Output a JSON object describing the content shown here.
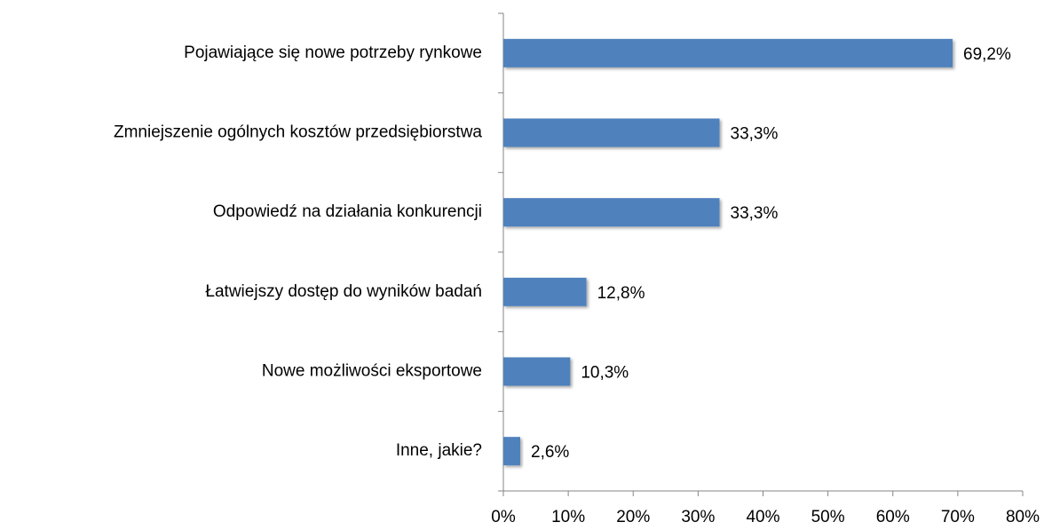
{
  "chart_data": {
    "type": "barh",
    "categories": [
      "Pojawiające się nowe potrzeby rynkowe",
      "Zmniejszenie ogólnych kosztów przedsiębiorstwa",
      "Odpowiedź na działania konkurencji",
      "Łatwiejszy dostęp do wyników badań",
      "Nowe możliwości eksportowe",
      "Inne, jakie?"
    ],
    "values": [
      69.2,
      33.3,
      33.3,
      12.8,
      10.3,
      2.6
    ],
    "value_labels": [
      "69,2%",
      "33,3%",
      "33,3%",
      "12,8%",
      "10,3%",
      "2,6%"
    ],
    "color": "#4f81bd",
    "xlim": [
      0,
      80
    ],
    "xticks": [
      {
        "value": 0,
        "label": "0%"
      },
      {
        "value": 10,
        "label": "10%"
      },
      {
        "value": 20,
        "label": "20%"
      },
      {
        "value": 30,
        "label": "30%"
      },
      {
        "value": 40,
        "label": "40%"
      },
      {
        "value": 50,
        "label": "50%"
      },
      {
        "value": 60,
        "label": "60%"
      },
      {
        "value": 70,
        "label": "70%"
      },
      {
        "value": 80,
        "label": "80%"
      }
    ],
    "grid": false
  }
}
